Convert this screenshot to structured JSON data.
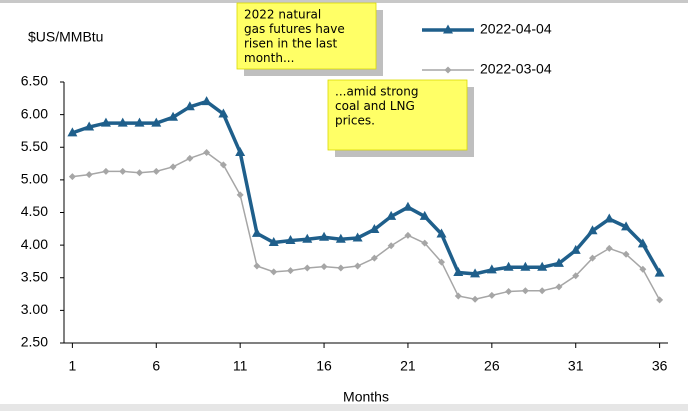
{
  "chart_data": {
    "type": "line",
    "y_label": "$US/MMBtu",
    "x_label": "Months",
    "x": [
      1,
      2,
      3,
      4,
      5,
      6,
      7,
      8,
      9,
      10,
      11,
      12,
      13,
      14,
      15,
      16,
      17,
      18,
      19,
      20,
      21,
      22,
      23,
      24,
      25,
      26,
      27,
      28,
      29,
      30,
      31,
      32,
      33,
      34,
      35,
      36
    ],
    "xlim": [
      0.5,
      36.5
    ],
    "xticks": [
      1,
      6,
      11,
      16,
      21,
      26,
      31,
      36
    ],
    "ylim": [
      2.5,
      6.5
    ],
    "yticks": [
      {
        "value": 2.5,
        "label": "2.50"
      },
      {
        "value": 3,
        "label": "3.00"
      },
      {
        "value": 3.5,
        "label": "3.50"
      },
      {
        "value": 4,
        "label": "4.00"
      },
      {
        "value": 4.5,
        "label": "4.50"
      },
      {
        "value": 5,
        "label": "5.00"
      },
      {
        "value": 5.5,
        "label": "5.50"
      },
      {
        "value": 6,
        "label": "6.00"
      },
      {
        "value": 6.5,
        "label": "6.50"
      }
    ],
    "series": [
      {
        "name": "2022-04-04",
        "color": "#1f5f8b",
        "marker": "triangle",
        "values": [
          5.72,
          5.81,
          5.87,
          5.87,
          5.87,
          5.87,
          5.96,
          6.12,
          6.2,
          6.01,
          5.42,
          4.18,
          4.04,
          4.07,
          4.09,
          4.12,
          4.09,
          4.11,
          4.24,
          4.44,
          4.58,
          4.44,
          4.17,
          3.58,
          3.56,
          3.62,
          3.66,
          3.66,
          3.66,
          3.72,
          3.92,
          4.22,
          4.4,
          4.28,
          4.02,
          3.57
        ]
      },
      {
        "name": "2022-03-04",
        "color": "#a6a6a6",
        "marker": "diamond",
        "values": [
          5.05,
          5.08,
          5.13,
          5.13,
          5.11,
          5.13,
          5.2,
          5.33,
          5.42,
          5.23,
          4.77,
          3.68,
          3.59,
          3.61,
          3.65,
          3.67,
          3.65,
          3.68,
          3.8,
          3.99,
          4.15,
          4.03,
          3.74,
          3.22,
          3.17,
          3.23,
          3.29,
          3.3,
          3.3,
          3.36,
          3.53,
          3.8,
          3.95,
          3.86,
          3.63,
          3.16
        ]
      }
    ],
    "annotations": [
      {
        "lines": [
          "2022 natural",
          "gas futures have",
          "risen in the last",
          "month..."
        ]
      },
      {
        "lines": [
          "...amid strong",
          "coal and LNG",
          "prices."
        ]
      }
    ]
  }
}
